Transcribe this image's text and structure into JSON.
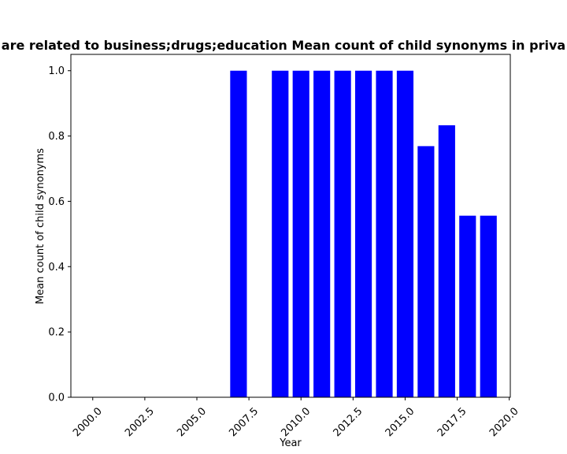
{
  "chart_data": {
    "type": "bar",
    "title": "are related to business;drugs;education Mean count of child synonyms in priva",
    "xlabel": "Year",
    "ylabel": "Mean count of child synonyms",
    "x": [
      2007,
      2009,
      2010,
      2011,
      2012,
      2013,
      2014,
      2015,
      2016,
      2017,
      2018,
      2019
    ],
    "values": [
      1.0,
      1.0,
      1.0,
      1.0,
      1.0,
      1.0,
      1.0,
      1.0,
      0.769,
      0.833,
      0.556,
      0.556
    ],
    "bar_width": 0.8,
    "bar_color": "#0000ff",
    "xlim": [
      1998.95,
      2020.05
    ],
    "ylim": [
      0,
      1.05
    ],
    "xticks": [
      2000,
      2002.5,
      2005,
      2007.5,
      2010,
      2012.5,
      2015,
      2017.5,
      2020
    ],
    "xtick_labels": [
      "2000.0",
      "2002.5",
      "2005.0",
      "2007.5",
      "2010.0",
      "2012.5",
      "2015.0",
      "2017.5",
      "2020.0"
    ],
    "xtick_rotation": 45,
    "yticks": [
      0,
      0.2,
      0.4,
      0.6,
      0.8,
      1.0
    ],
    "ytick_labels": [
      "0.0",
      "0.2",
      "0.4",
      "0.6",
      "0.8",
      "1.0"
    ],
    "grid": false,
    "legend": "none"
  }
}
